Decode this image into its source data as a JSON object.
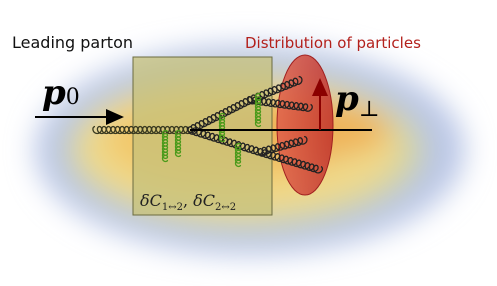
{
  "labels": {
    "leading_parton": "Leading parton",
    "distribution": "Distribution of particles"
  },
  "symbols": {
    "p0": {
      "base": "p",
      "sub": "0"
    },
    "p_perp": {
      "base": "p",
      "sub": "⊥"
    }
  },
  "correction": {
    "first": {
      "base": "δC",
      "sub": "1↔2"
    },
    "separator": ", ",
    "second": {
      "base": "δC",
      "sub": "2↔2"
    }
  }
}
